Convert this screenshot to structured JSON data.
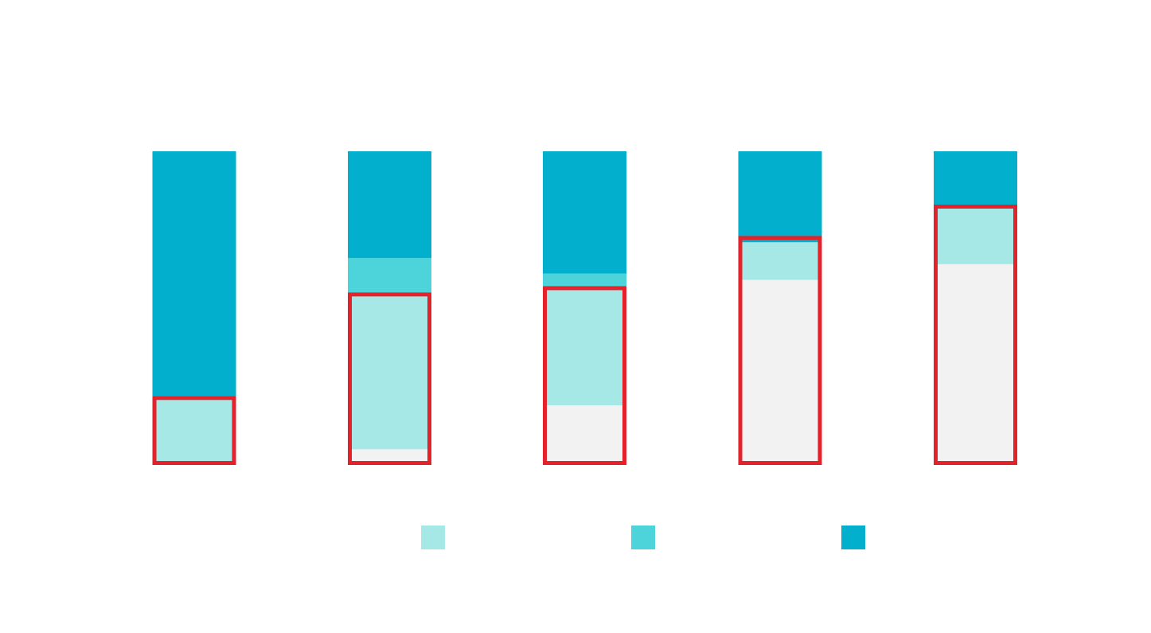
{
  "chart_data": {
    "type": "bar",
    "stacked": true,
    "categories": [
      "",
      "",
      "",
      "",
      ""
    ],
    "ylim": [
      0,
      100
    ],
    "grid": false,
    "legend_position": "bottom",
    "series": [
      {
        "color": "#F2F2F2",
        "values": [
          0,
          5,
          19,
          59,
          64
        ]
      },
      {
        "color": "#A5E8E6",
        "values": [
          22,
          50,
          37,
          12,
          19
        ]
      },
      {
        "color": "#4DD4DB",
        "values": [
          0,
          11,
          5,
          0,
          0
        ]
      },
      {
        "color": "#02AFCD",
        "values": [
          78,
          34,
          39,
          29,
          17
        ]
      }
    ],
    "legend": {
      "entries": [
        {
          "color": "#A5E8E6"
        },
        {
          "color": "#4DD4DB"
        },
        {
          "color": "#02AFCD"
        }
      ]
    },
    "highlight": {
      "color": "#E3222B",
      "values": [
        22,
        55,
        57,
        73,
        83
      ]
    }
  }
}
